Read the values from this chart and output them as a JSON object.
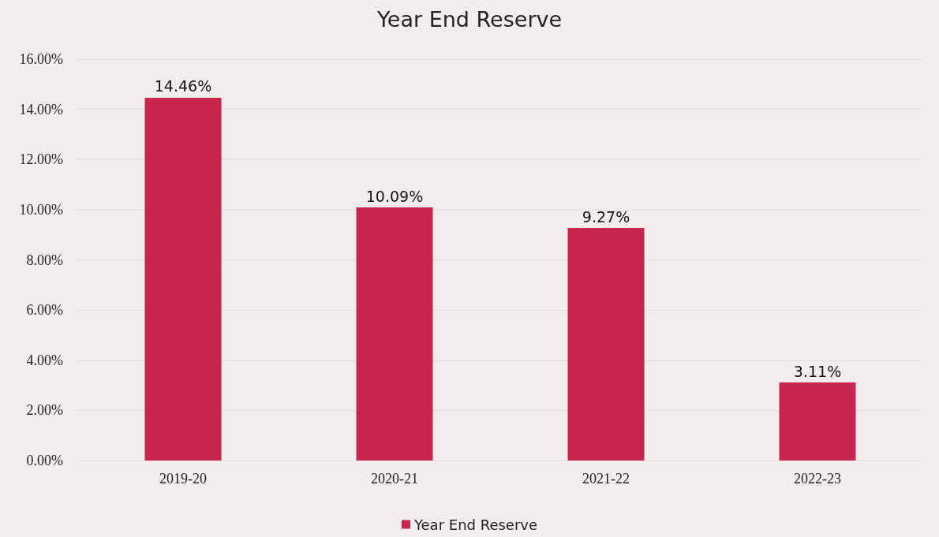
{
  "chart_data": {
    "type": "bar",
    "title": "Year End Reserve",
    "categories": [
      "2019-20",
      "2020-21",
      "2021-22",
      "2022-23"
    ],
    "series": [
      {
        "name": "Year End Reserve",
        "color": "#c8264e",
        "values": [
          14.46,
          10.09,
          9.27,
          3.11
        ],
        "value_labels": [
          "14.46%",
          "10.09%",
          "9.27%",
          "3.11%"
        ]
      }
    ],
    "ylim": [
      0,
      16
    ],
    "yticks": [
      {
        "value": 0,
        "label": "0.00%"
      },
      {
        "value": 2,
        "label": "2.00%"
      },
      {
        "value": 4,
        "label": "4.00%"
      },
      {
        "value": 6,
        "label": "6.00%"
      },
      {
        "value": 8,
        "label": "8.00%"
      },
      {
        "value": 10,
        "label": "10.00%"
      },
      {
        "value": 12,
        "label": "12.00%"
      },
      {
        "value": 14,
        "label": "14.00%"
      },
      {
        "value": 16,
        "label": "16.00%"
      }
    ],
    "grid": "y",
    "legend": "bottom"
  }
}
